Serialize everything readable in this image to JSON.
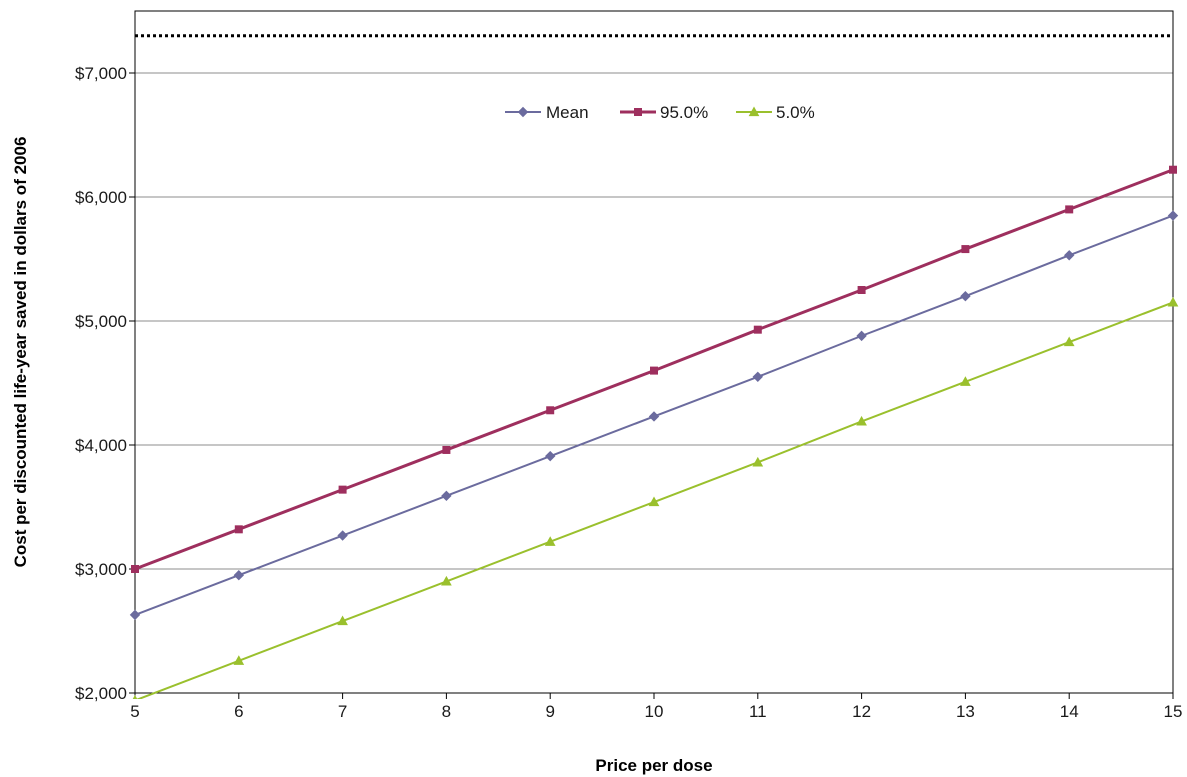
{
  "chart_data": {
    "type": "line",
    "xlabel": "Price per dose",
    "ylabel": "Cost per discounted life-year saved in dollars of 2006",
    "x": [
      5,
      6,
      7,
      8,
      9,
      10,
      11,
      12,
      13,
      14,
      15
    ],
    "xlim": [
      5,
      15
    ],
    "ylim": [
      2000,
      7500
    ],
    "yticks": [
      2000,
      3000,
      4000,
      5000,
      6000,
      7000
    ],
    "ytick_labels": [
      "$2,000",
      "$3,000",
      "$4,000",
      "$5,000",
      "$6,000",
      "$7,000"
    ],
    "xtick_labels": [
      "5",
      "6",
      "7",
      "8",
      "9",
      "10",
      "11",
      "12",
      "13",
      "14",
      "15"
    ],
    "grid": true,
    "legend_position": "top-center",
    "reference_line": {
      "y": 7300,
      "style": "dotted"
    },
    "series": [
      {
        "name": "Mean",
        "color": "#6b6b9e",
        "marker": "diamond",
        "values": [
          2630,
          2950,
          3270,
          3590,
          3910,
          4230,
          4550,
          4880,
          5200,
          5530,
          5850
        ]
      },
      {
        "name": "95.0%",
        "color": "#9e2f5e",
        "marker": "square",
        "values": [
          3000,
          3320,
          3640,
          3960,
          4280,
          4600,
          4930,
          5250,
          5580,
          5900,
          6220
        ]
      },
      {
        "name": "5.0%",
        "color": "#9ac02d",
        "marker": "triangle",
        "values": [
          1940,
          2260,
          2580,
          2900,
          3220,
          3540,
          3860,
          4190,
          4510,
          4830,
          5150
        ]
      }
    ]
  }
}
